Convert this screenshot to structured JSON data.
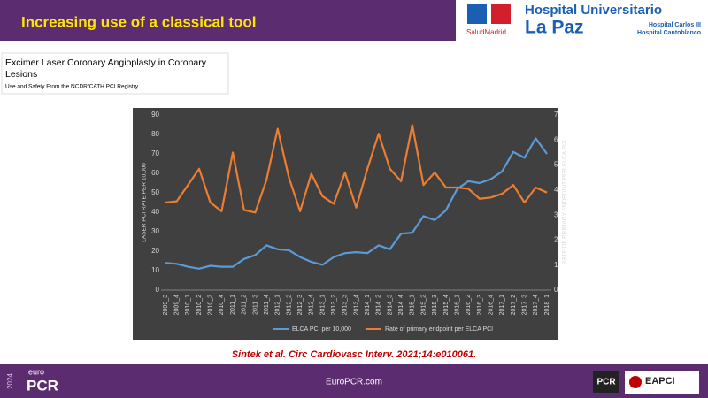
{
  "slide": {
    "title": "Increasing use of a classical tool",
    "paper_title": "Excimer Laser Coronary Angioplasty in Coronary",
    "paper_title_2": "Lesions",
    "paper_subtitle": "Use and Safety From the NCDR/CATH PCI Registry",
    "logo": {
      "name1": "Hospital Universitario",
      "name2": "La Paz",
      "sub1": "Hospital Carlos III",
      "sub2": "Hospital Cantoblanco",
      "brand": "SaludMadrid"
    },
    "citation": "Sintek et al. Circ Cardiovasc Interv. 2021;14:e010061.",
    "footer": {
      "year": "2024",
      "euro": "euro",
      "pcr": "PCR",
      "site": "EuroPCR.com",
      "pcr_logo": "PCR",
      "eapci": "EAPCI"
    }
  },
  "chart_data": {
    "type": "line",
    "y_label": "LASER PCI RATE PER 10,000",
    "y2_label": "RATE OF PRIMARY ENDPOINT PER ELCA PCI",
    "categories": [
      "2009_3",
      "2009_4",
      "2010_1",
      "2010_2",
      "2010_3",
      "2010_4",
      "2011_1",
      "2011_2",
      "2011_3",
      "2011_4",
      "2012_1",
      "2012_2",
      "2012_3",
      "2012_4",
      "2013_1",
      "2013_2",
      "2013_3",
      "2013_4",
      "2014_1",
      "2014_2",
      "2014_3",
      "2014_4",
      "2015_1",
      "2015_2",
      "2015_3",
      "2015_4",
      "2016_1",
      "2016_2",
      "2016_3",
      "2016_4",
      "2017_1",
      "2017_2",
      "2017_3",
      "2017_4",
      "2018_1"
    ],
    "series": [
      {
        "name": "ELCA PCI per 10,000",
        "color": "#5b9bd5",
        "values": [
          14,
          13.5,
          12,
          11,
          12.5,
          12,
          12,
          16,
          18,
          23,
          21,
          20.5,
          17,
          14.5,
          13,
          17,
          19,
          19.5,
          19,
          23,
          21,
          29,
          29.5,
          38,
          36,
          41,
          52,
          56,
          55,
          57,
          61,
          71,
          68,
          78,
          70
        ]
      },
      {
        "name": "Rate of primary endpoint per ELCA PCI",
        "color": "#ed7d31",
        "axis": "y2",
        "values": [
          3.5,
          3.55,
          4.2,
          4.85,
          3.5,
          3.15,
          5.5,
          3.2,
          3.1,
          4.4,
          6.45,
          4.5,
          3.15,
          4.65,
          3.75,
          3.45,
          4.7,
          3.3,
          4.85,
          6.25,
          4.85,
          4.35,
          6.6,
          4.2,
          4.7,
          4.1,
          4.1,
          4.05,
          3.65,
          3.7,
          3.85,
          4.2,
          3.5,
          4.1,
          3.9
        ]
      }
    ],
    "ylim": [
      0,
      90
    ],
    "yticks": [
      0,
      10,
      20,
      30,
      40,
      50,
      60,
      70,
      80,
      90
    ],
    "y2lim": [
      0,
      7
    ],
    "y2ticks": [
      0,
      1,
      2,
      3,
      4,
      5,
      6,
      7
    ],
    "grid": false,
    "legend": "bottom"
  }
}
